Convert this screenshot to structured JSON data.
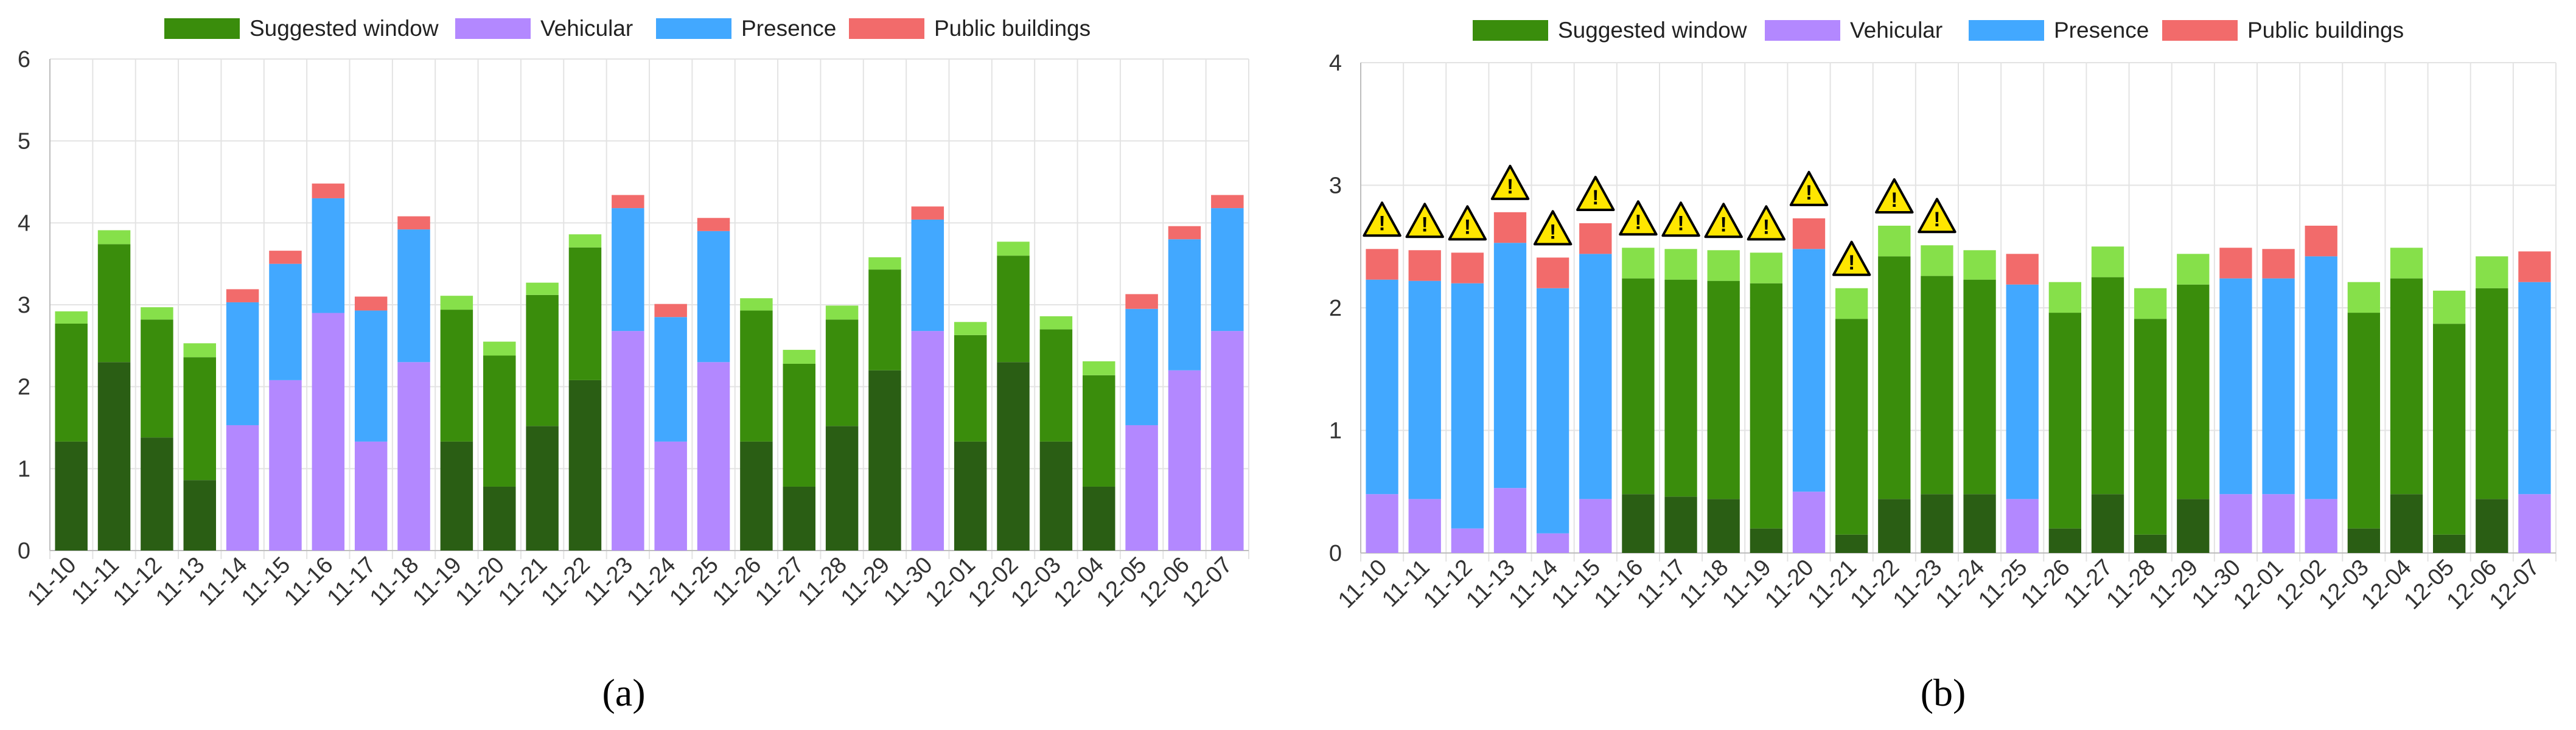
{
  "chart_data": [
    {
      "type": "bar",
      "stacked": true,
      "panel_label": "(a)",
      "legend": [
        "Suggested window",
        "Vehicular",
        "Presence",
        "Public buildings"
      ],
      "ylim": [
        0,
        6
      ],
      "yticks": [
        0,
        1,
        2,
        3,
        4,
        5,
        6
      ],
      "grid": true,
      "categories": [
        "11-10",
        "11-11",
        "11-12",
        "11-13",
        "11-14",
        "11-15",
        "11-16",
        "11-17",
        "11-18",
        "11-19",
        "11-20",
        "11-21",
        "11-22",
        "11-23",
        "11-24",
        "11-25",
        "11-26",
        "11-27",
        "11-28",
        "11-29",
        "11-30",
        "12-01",
        "12-02",
        "12-03",
        "12-04",
        "12-05",
        "12-06",
        "12-07"
      ],
      "series": [
        {
          "name": "Suggested window (lower)",
          "legend_group": "Suggested window",
          "values": [
            1.33,
            2.3,
            1.38,
            0.86,
            0,
            0,
            0,
            0,
            0,
            1.33,
            0.78,
            1.52,
            2.08,
            0,
            0,
            0,
            1.33,
            0.78,
            1.52,
            2.2,
            0,
            1.33,
            2.3,
            1.33,
            0.78,
            0,
            0,
            0
          ]
        },
        {
          "name": "Vehicular",
          "legend_group": "Vehicular",
          "values": [
            0,
            0,
            0,
            0,
            1.53,
            2.08,
            2.9,
            1.33,
            2.3,
            0,
            0,
            0,
            0,
            2.68,
            1.33,
            2.3,
            0,
            0,
            0,
            0,
            2.68,
            0,
            0,
            0,
            0,
            1.53,
            2.2,
            2.68
          ]
        },
        {
          "name": "Suggested window (middle)",
          "legend_group": "Suggested window",
          "values": [
            1.44,
            1.44,
            1.44,
            1.5,
            0,
            0,
            0,
            0,
            0,
            1.61,
            1.6,
            1.6,
            1.62,
            0,
            0,
            0,
            1.6,
            1.5,
            1.3,
            1.23,
            0,
            1.3,
            1.3,
            1.37,
            1.36,
            0,
            0,
            0
          ]
        },
        {
          "name": "Presence",
          "legend_group": "Presence",
          "values": [
            0,
            0,
            0,
            0,
            1.5,
            1.42,
            1.4,
            1.6,
            1.62,
            0,
            0,
            0,
            0,
            1.5,
            1.52,
            1.6,
            0,
            0,
            0,
            0,
            1.36,
            0,
            0,
            0,
            0,
            1.42,
            1.6,
            1.5
          ]
        },
        {
          "name": "Suggested window (upper)",
          "legend_group": "Suggested window",
          "values": [
            0.15,
            0.17,
            0.15,
            0.17,
            0,
            0,
            0,
            0,
            0,
            0.17,
            0.17,
            0.15,
            0.16,
            0,
            0,
            0,
            0.15,
            0.17,
            0.17,
            0.15,
            0,
            0.16,
            0.17,
            0.16,
            0.17,
            0,
            0,
            0
          ]
        },
        {
          "name": "Public buildings",
          "legend_group": "Public buildings",
          "values": [
            0,
            0,
            0,
            0,
            0.16,
            0.16,
            0.18,
            0.17,
            0.16,
            0,
            0,
            0,
            0,
            0.16,
            0.16,
            0.16,
            0,
            0,
            0,
            0,
            0.16,
            0,
            0,
            0,
            0,
            0.18,
            0.16,
            0.16
          ]
        }
      ]
    },
    {
      "type": "bar",
      "stacked": true,
      "panel_label": "(b)",
      "legend": [
        "Suggested window",
        "Vehicular",
        "Presence",
        "Public buildings"
      ],
      "ylim": [
        0,
        4
      ],
      "yticks": [
        0,
        1,
        2,
        3,
        4
      ],
      "grid": true,
      "categories": [
        "11-10",
        "11-11",
        "11-12",
        "11-13",
        "11-14",
        "11-15",
        "11-16",
        "11-17",
        "11-18",
        "11-19",
        "11-20",
        "11-21",
        "11-22",
        "11-23",
        "11-24",
        "11-25",
        "11-26",
        "11-27",
        "11-28",
        "11-29",
        "11-30",
        "12-01",
        "12-02",
        "12-03",
        "12-04",
        "12-05",
        "12-06",
        "12-07"
      ],
      "warning_flags": [
        true,
        true,
        true,
        true,
        true,
        true,
        true,
        true,
        true,
        true,
        true,
        true,
        true,
        true,
        false,
        false,
        false,
        false,
        false,
        false,
        false,
        false,
        false,
        false,
        false,
        false,
        false,
        false
      ],
      "warning_symbol": "!",
      "series": [
        {
          "name": "Suggested window (lower)",
          "legend_group": "Suggested window",
          "values": [
            0,
            0,
            0,
            0,
            0,
            0,
            0.48,
            0.46,
            0.44,
            0.2,
            0,
            0.15,
            0.44,
            0.48,
            0.48,
            0,
            0.2,
            0.48,
            0.15,
            0.44,
            0,
            0,
            0,
            0.2,
            0.48,
            0.15,
            0.44,
            0
          ]
        },
        {
          "name": "Vehicular",
          "legend_group": "Vehicular",
          "values": [
            0.48,
            0.44,
            0.2,
            0.53,
            0.16,
            0.44,
            0,
            0,
            0,
            0,
            0.5,
            0,
            0,
            0,
            0,
            0.44,
            0,
            0,
            0,
            0,
            0.48,
            0.48,
            0.44,
            0,
            0,
            0,
            0,
            0.48
          ]
        },
        {
          "name": "Suggested window (middle)",
          "legend_group": "Suggested window",
          "values": [
            0,
            0,
            0,
            0,
            0,
            0,
            1.76,
            1.77,
            1.78,
            2.0,
            0,
            1.76,
            1.98,
            1.78,
            1.75,
            0,
            1.76,
            1.77,
            1.76,
            1.75,
            0,
            0,
            0,
            1.76,
            1.76,
            1.72,
            1.72,
            0
          ]
        },
        {
          "name": "Presence",
          "legend_group": "Presence",
          "values": [
            1.75,
            1.78,
            2.0,
            2.0,
            2.0,
            2.0,
            0,
            0,
            0,
            0,
            1.98,
            0,
            0,
            0,
            0,
            1.75,
            0,
            0,
            0,
            0,
            1.76,
            1.76,
            1.98,
            0,
            0,
            0,
            0,
            1.73
          ]
        },
        {
          "name": "Suggested window (upper)",
          "legend_group": "Suggested window",
          "values": [
            0,
            0,
            0,
            0,
            0,
            0,
            0.25,
            0.25,
            0.25,
            0.25,
            0,
            0.25,
            0.25,
            0.25,
            0.24,
            0,
            0.25,
            0.25,
            0.25,
            0.25,
            0,
            0,
            0,
            0.25,
            0.25,
            0.27,
            0.26,
            0
          ]
        },
        {
          "name": "Public buildings",
          "legend_group": "Public buildings",
          "values": [
            0.25,
            0.25,
            0.25,
            0.25,
            0.25,
            0.25,
            0,
            0,
            0,
            0,
            0.25,
            0,
            0,
            0,
            0,
            0.25,
            0,
            0,
            0,
            0,
            0.25,
            0.24,
            0.25,
            0,
            0,
            0,
            0,
            0.25
          ]
        }
      ]
    }
  ],
  "colors": {
    "Suggested window (lower)": "#2a5e14",
    "Suggested window (middle)": "#3a8d0c",
    "Suggested window (upper)": "#86e04a",
    "Suggested window": "#3a8d0c",
    "Vehicular": "#b388ff",
    "Presence": "#42a8ff",
    "Public buildings": "#f26b6b",
    "grid": "#e3e3e3",
    "axis": "#bdbdbd",
    "warning_fill": "#ffe600",
    "warning_stroke": "#000000"
  }
}
